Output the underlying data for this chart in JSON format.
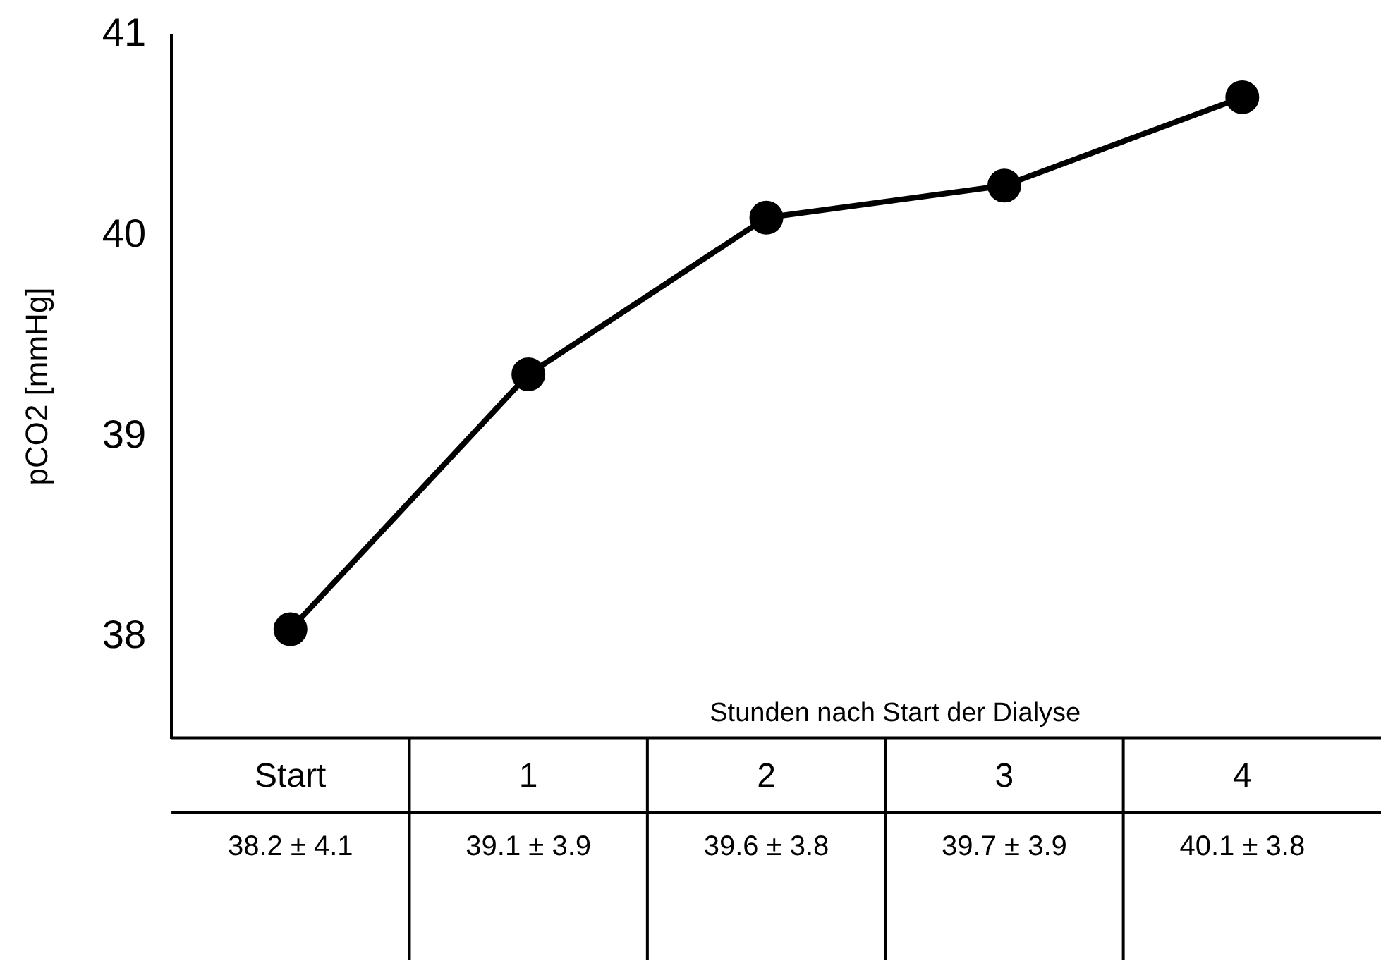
{
  "chart_data": {
    "type": "line",
    "xlabel": "Stunden nach Start der Dialyse",
    "ylabel": "pCO2 [mmHg]",
    "categories": [
      "Start",
      "1",
      "2",
      "3",
      "4"
    ],
    "series": [
      {
        "color": "#000000",
        "values": [
          38.04,
          39.31,
          40.09,
          40.25,
          40.69
        ]
      }
    ],
    "ylim": [
      37.5,
      41
    ],
    "yticks": [
      38,
      39,
      40,
      41
    ],
    "grid": false,
    "legend": false,
    "marker": "circle",
    "line_style": "solid",
    "annotations": [
      "38.2 ± 4.1",
      "39.1 ± 3.9",
      "39.6 ± 3.8",
      "39.7 ± 3.9",
      "40.1 ± 3.8"
    ]
  }
}
